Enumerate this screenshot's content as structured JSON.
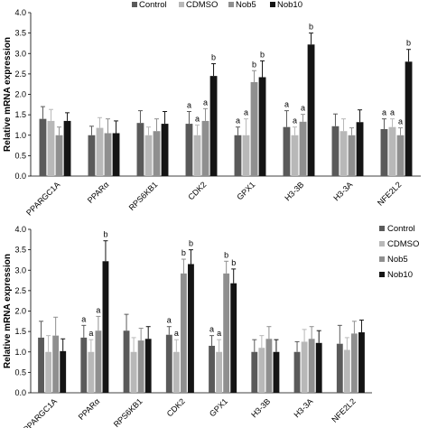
{
  "series_colors": [
    "#5a5a5a",
    "#b8b8b8",
    "#8f8f8f",
    "#141414"
  ],
  "chart_data": [
    {
      "type": "bar",
      "ylabel": "Relative mRNA expression",
      "ylim": [
        0,
        4.0
      ],
      "yticks": [
        "0.0",
        "0.5",
        "1.0",
        "1.5",
        "2.0",
        "2.5",
        "3.0",
        "3.5",
        "4.0"
      ],
      "legend_position": "top",
      "grid": false,
      "categories": [
        "PPARGC1A",
        "PPARα",
        "RPS6KB1",
        "CDK2",
        "GPX1",
        "H3-3B",
        "H3-3A",
        "NFE2L2"
      ],
      "series": [
        {
          "name": "Control",
          "values": [
            1.4,
            1.0,
            1.3,
            1.28,
            1.0,
            1.2,
            1.22,
            1.15
          ],
          "errors": [
            0.3,
            0.22,
            0.3,
            0.3,
            0.2,
            0.4,
            0.3,
            0.25
          ]
        },
        {
          "name": "CDMSO",
          "values": [
            1.35,
            1.18,
            1.0,
            1.0,
            1.0,
            1.0,
            1.1,
            1.2
          ],
          "errors": [
            0.28,
            0.25,
            0.2,
            0.25,
            0.4,
            0.2,
            0.3,
            0.2
          ]
        },
        {
          "name": "Nob5",
          "values": [
            1.0,
            1.05,
            1.1,
            1.35,
            2.3,
            1.33,
            1.0,
            1.0
          ],
          "errors": [
            0.2,
            0.35,
            0.3,
            0.3,
            0.28,
            0.18,
            0.18,
            0.18
          ]
        },
        {
          "name": "Nob10",
          "values": [
            1.35,
            1.05,
            1.28,
            2.45,
            2.42,
            3.22,
            1.32,
            2.8
          ],
          "errors": [
            0.2,
            0.3,
            0.3,
            0.3,
            0.4,
            0.28,
            0.3,
            0.3
          ]
        }
      ],
      "significance": [
        {
          "category": 3,
          "labels": [
            "a",
            "a",
            "a",
            "b"
          ]
        },
        {
          "category": 4,
          "labels": [
            "a",
            "a",
            "b",
            "b"
          ]
        },
        {
          "category": 5,
          "labels": [
            "a",
            "a",
            "a",
            "b"
          ]
        },
        {
          "category": 7,
          "labels": [
            "a",
            "a",
            "a",
            "b"
          ]
        }
      ]
    },
    {
      "type": "bar",
      "ylabel": "Relative mRNA expression",
      "ylim": [
        0,
        4.0
      ],
      "yticks": [
        "0.0",
        "0.5",
        "1.0",
        "1.5",
        "2.0",
        "2.5",
        "3.0",
        "3.5",
        "4.0"
      ],
      "legend_position": "right",
      "grid": false,
      "categories": [
        "PPARGC1A",
        "PPARα",
        "RPS6KB1",
        "CDK2",
        "GPX1",
        "H3-3B",
        "H3-3A",
        "NFE2L2"
      ],
      "series": [
        {
          "name": "Control",
          "values": [
            1.35,
            1.35,
            1.52,
            1.42,
            1.15,
            1.0,
            1.0,
            1.2
          ],
          "errors": [
            0.4,
            0.3,
            0.4,
            0.2,
            0.25,
            0.3,
            0.25,
            0.45
          ]
        },
        {
          "name": "CDMSO",
          "values": [
            1.0,
            1.0,
            1.0,
            1.0,
            1.0,
            1.1,
            1.25,
            1.05
          ],
          "errors": [
            0.4,
            0.3,
            0.35,
            0.3,
            0.3,
            0.3,
            0.3,
            0.3
          ]
        },
        {
          "name": "Nob5",
          "values": [
            1.4,
            1.52,
            1.28,
            2.92,
            2.92,
            1.32,
            1.32,
            1.45
          ],
          "errors": [
            0.45,
            0.35,
            0.3,
            0.35,
            0.3,
            0.3,
            0.3,
            0.3
          ]
        },
        {
          "name": "Nob10",
          "values": [
            1.02,
            3.22,
            1.32,
            3.15,
            2.68,
            1.0,
            1.22,
            1.48
          ],
          "errors": [
            0.3,
            0.5,
            0.3,
            0.35,
            0.35,
            0.3,
            0.3,
            0.3
          ]
        }
      ],
      "significance": [
        {
          "category": 1,
          "labels": [
            "a",
            "a",
            "a",
            "b"
          ]
        },
        {
          "category": 3,
          "labels": [
            "a",
            "a",
            "b",
            "b"
          ]
        },
        {
          "category": 4,
          "labels": [
            "a",
            "a",
            "b",
            "b"
          ]
        }
      ]
    }
  ]
}
